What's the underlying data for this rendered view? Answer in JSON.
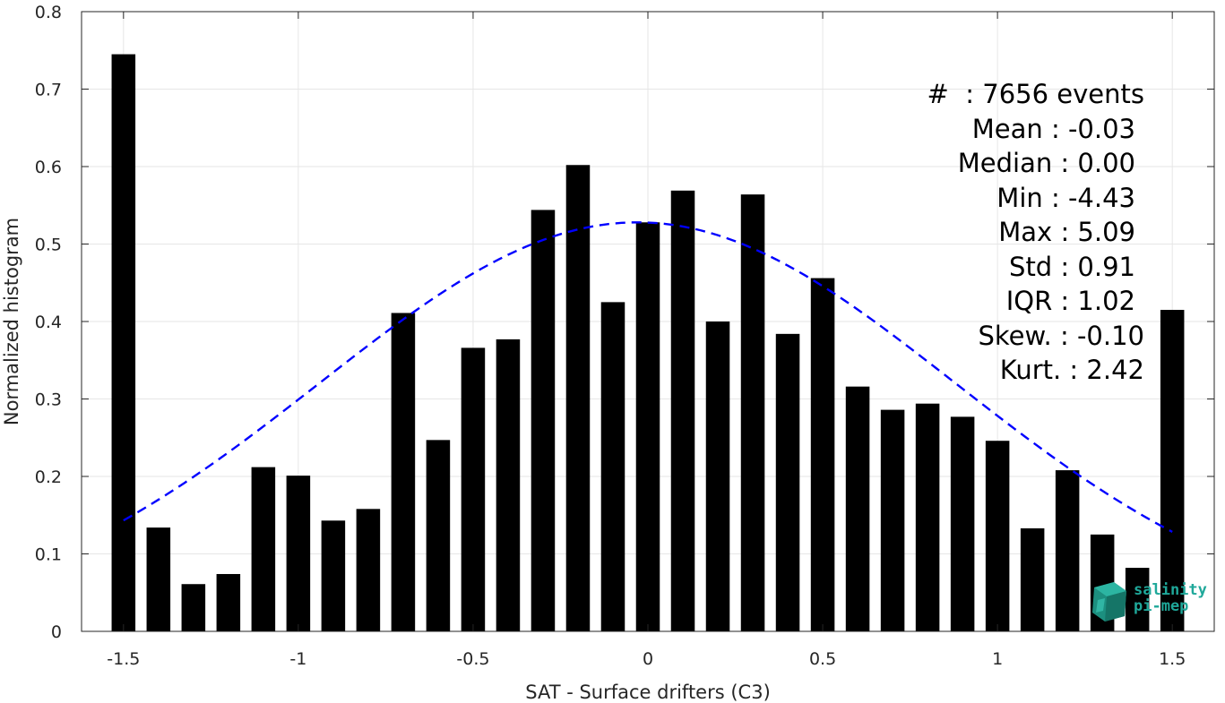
{
  "chart_data": {
    "type": "bar",
    "xlabel": "SAT - Surface drifters (C3)",
    "ylabel": "Normalized histogram",
    "xlim": [
      -1.62,
      1.62
    ],
    "ylim": [
      0,
      0.8
    ],
    "grid": true,
    "xticks": [
      -1.5,
      -1,
      -0.5,
      0,
      0.5,
      1,
      1.5
    ],
    "xtick_labels": [
      "-1.5",
      "-1",
      "-0.5",
      "0",
      "0.5",
      "1",
      "1.5"
    ],
    "yticks": [
      0,
      0.1,
      0.2,
      0.3,
      0.4,
      0.5,
      0.6,
      0.7,
      0.8
    ],
    "ytick_labels": [
      "0",
      "0.1",
      "0.2",
      "0.3",
      "0.4",
      "0.5",
      "0.6",
      "0.7",
      "0.8"
    ],
    "bin_width": 0.1,
    "bar_color": "#000000",
    "x": [
      -1.5,
      -1.4,
      -1.3,
      -1.2,
      -1.1,
      -1.0,
      -0.9,
      -0.8,
      -0.7,
      -0.6,
      -0.5,
      -0.4,
      -0.3,
      -0.2,
      -0.1,
      0.0,
      0.1,
      0.2,
      0.3,
      0.4,
      0.5,
      0.6,
      0.7,
      0.8,
      0.9,
      1.0,
      1.1,
      1.2,
      1.3,
      1.4,
      1.5
    ],
    "values": [
      0.745,
      0.134,
      0.061,
      0.074,
      0.212,
      0.201,
      0.143,
      0.158,
      0.411,
      0.247,
      0.366,
      0.377,
      0.544,
      0.602,
      0.425,
      0.528,
      0.569,
      0.4,
      0.564,
      0.384,
      0.456,
      0.316,
      0.286,
      0.294,
      0.277,
      0.246,
      0.133,
      0.208,
      0.125,
      0.082,
      0.415
    ],
    "fit_curve": {
      "style": "dashed",
      "color": "#0000ff",
      "type": "gaussian",
      "mean": -0.03,
      "std": 0.91,
      "x_range": [
        -1.5,
        1.5
      ],
      "peak": 0.528
    }
  },
  "stats": {
    "count": "#  : 7656 events",
    "mean": "Mean : -0.03",
    "median": "Median : 0.00",
    "min": "Min : -4.43",
    "max": "Max : 5.09",
    "std": "Std : 0.91",
    "iqr": "IQR : 1.02",
    "skew": "Skew. : -0.10",
    "kurt": "Kurt. : 2.42"
  },
  "logo": {
    "line1": "salinity",
    "line2": "pi-mep",
    "color": "#1fa89a"
  }
}
